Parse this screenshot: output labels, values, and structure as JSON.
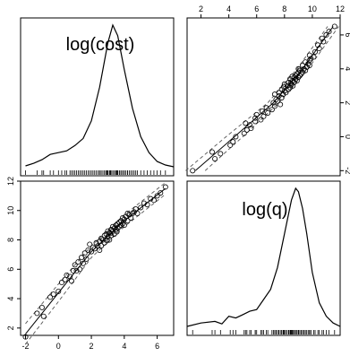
{
  "chart_data": {
    "type": "scatter",
    "title": "",
    "variables": [
      "log(cost)",
      "log(q)"
    ],
    "panels": [
      {
        "position": "top-left",
        "type": "density",
        "variable": "log(cost)",
        "label": "log(cost)",
        "x": [
          -2.0,
          -1.5,
          -1.0,
          -0.5,
          0.0,
          0.5,
          1.0,
          1.5,
          2.0,
          2.5,
          3.0,
          3.3,
          3.6,
          4.0,
          4.5,
          5.0,
          5.5,
          6.0,
          6.5,
          7.0
        ],
        "density": [
          0.005,
          0.02,
          0.04,
          0.07,
          0.08,
          0.09,
          0.12,
          0.16,
          0.26,
          0.45,
          0.7,
          0.8,
          0.74,
          0.55,
          0.33,
          0.17,
          0.08,
          0.03,
          0.01,
          0.0
        ]
      },
      {
        "position": "top-right",
        "type": "scatter",
        "x_variable": "log(q)",
        "y_variable": "log(cost)",
        "note": "mirror of bottom-left panel"
      },
      {
        "position": "bottom-left",
        "type": "scatter",
        "x_variable": "log(cost)",
        "y_variable": "log(q)",
        "xlim": [
          -2.3,
          7.0
        ],
        "ylim": [
          1.5,
          12.0
        ],
        "x_ticks": [
          "-2",
          "0",
          "2",
          "4",
          "6"
        ],
        "y_ticks": [
          "2",
          "4",
          "6",
          "8",
          "10",
          "12"
        ],
        "points": [
          [
            -2.0,
            1.4
          ],
          [
            -1.3,
            3.0
          ],
          [
            -1.0,
            3.4
          ],
          [
            -0.9,
            2.8
          ],
          [
            -0.5,
            4.1
          ],
          [
            -0.3,
            4.3
          ],
          [
            0.0,
            4.5
          ],
          [
            0.2,
            5.1
          ],
          [
            0.4,
            5.3
          ],
          [
            0.5,
            5.6
          ],
          [
            0.7,
            5.5
          ],
          [
            0.9,
            5.9
          ],
          [
            1.0,
            6.3
          ],
          [
            1.1,
            5.9
          ],
          [
            1.2,
            6.5
          ],
          [
            1.3,
            6.0
          ],
          [
            1.5,
            6.4
          ],
          [
            1.6,
            7.1
          ],
          [
            1.7,
            6.7
          ],
          [
            1.8,
            7.3
          ],
          [
            1.9,
            7.7
          ],
          [
            2.0,
            7.2
          ],
          [
            2.1,
            7.5
          ],
          [
            2.2,
            7.4
          ],
          [
            2.3,
            7.8
          ],
          [
            2.4,
            7.6
          ],
          [
            2.5,
            7.9
          ],
          [
            2.6,
            8.1
          ],
          [
            2.6,
            7.6
          ],
          [
            2.7,
            8.0
          ],
          [
            2.8,
            8.3
          ],
          [
            2.8,
            7.8
          ],
          [
            2.9,
            8.4
          ],
          [
            3.0,
            8.2
          ],
          [
            3.0,
            8.6
          ],
          [
            3.1,
            8.5
          ],
          [
            3.1,
            8.0
          ],
          [
            3.2,
            8.7
          ],
          [
            3.2,
            8.3
          ],
          [
            3.3,
            8.6
          ],
          [
            3.3,
            8.9
          ],
          [
            3.4,
            8.8
          ],
          [
            3.4,
            8.4
          ],
          [
            3.5,
            9.0
          ],
          [
            3.5,
            8.7
          ],
          [
            3.6,
            9.1
          ],
          [
            3.6,
            8.8
          ],
          [
            3.7,
            9.2
          ],
          [
            3.7,
            8.9
          ],
          [
            3.8,
            9.3
          ],
          [
            3.8,
            9.0
          ],
          [
            3.9,
            9.1
          ],
          [
            4.0,
            9.4
          ],
          [
            4.0,
            9.0
          ],
          [
            4.1,
            9.6
          ],
          [
            4.2,
            9.3
          ],
          [
            4.3,
            9.7
          ],
          [
            4.4,
            9.5
          ],
          [
            4.5,
            9.8
          ],
          [
            4.6,
            9.9
          ],
          [
            4.7,
            10.1
          ],
          [
            4.8,
            9.8
          ],
          [
            5.0,
            10.2
          ],
          [
            5.2,
            10.5
          ],
          [
            5.4,
            10.4
          ],
          [
            5.6,
            10.8
          ],
          [
            5.8,
            10.7
          ],
          [
            6.0,
            11.0
          ],
          [
            6.2,
            11.2
          ],
          [
            6.5,
            11.6
          ],
          [
            1.4,
            6.8
          ],
          [
            2.5,
            7.3
          ],
          [
            3.9,
            9.5
          ],
          [
            4.2,
            9.8
          ],
          [
            0.8,
            5.2
          ],
          [
            3.15,
            8.45
          ],
          [
            2.95,
            7.95
          ],
          [
            3.55,
            8.55
          ]
        ],
        "fit_line": [
          [
            -2.0,
            1.6
          ],
          [
            0.0,
            4.4
          ],
          [
            2.0,
            7.2
          ],
          [
            4.0,
            9.3
          ],
          [
            6.5,
            11.5
          ]
        ],
        "band_upper": [
          [
            -2.0,
            2.3
          ],
          [
            0.0,
            5.0
          ],
          [
            2.0,
            7.6
          ],
          [
            4.0,
            9.7
          ],
          [
            6.5,
            11.9
          ]
        ],
        "band_lower": [
          [
            -2.0,
            0.9
          ],
          [
            0.0,
            3.8
          ],
          [
            2.0,
            6.8
          ],
          [
            4.0,
            8.9
          ],
          [
            6.5,
            11.1
          ]
        ]
      },
      {
        "position": "bottom-right",
        "type": "density",
        "variable": "log(q)",
        "label": "log(q)",
        "x": [
          1.0,
          2.0,
          3.0,
          3.5,
          4.0,
          4.5,
          5.0,
          5.5,
          6.0,
          6.5,
          7.0,
          7.5,
          8.0,
          8.5,
          8.8,
          9.0,
          9.3,
          9.6,
          10.0,
          10.5,
          11.0,
          11.5,
          12.0
        ],
        "density": [
          0.0,
          0.02,
          0.03,
          0.015,
          0.06,
          0.05,
          0.07,
          0.09,
          0.1,
          0.16,
          0.22,
          0.35,
          0.55,
          0.75,
          0.82,
          0.8,
          0.7,
          0.55,
          0.32,
          0.14,
          0.06,
          0.02,
          0.0
        ]
      }
    ],
    "top_axis_ticks": [
      "2",
      "4",
      "6",
      "8",
      "10",
      "12"
    ],
    "right_axis_ticks": [
      "-2",
      "0",
      "2",
      "4",
      "6"
    ],
    "grid": false,
    "legend": "none"
  }
}
